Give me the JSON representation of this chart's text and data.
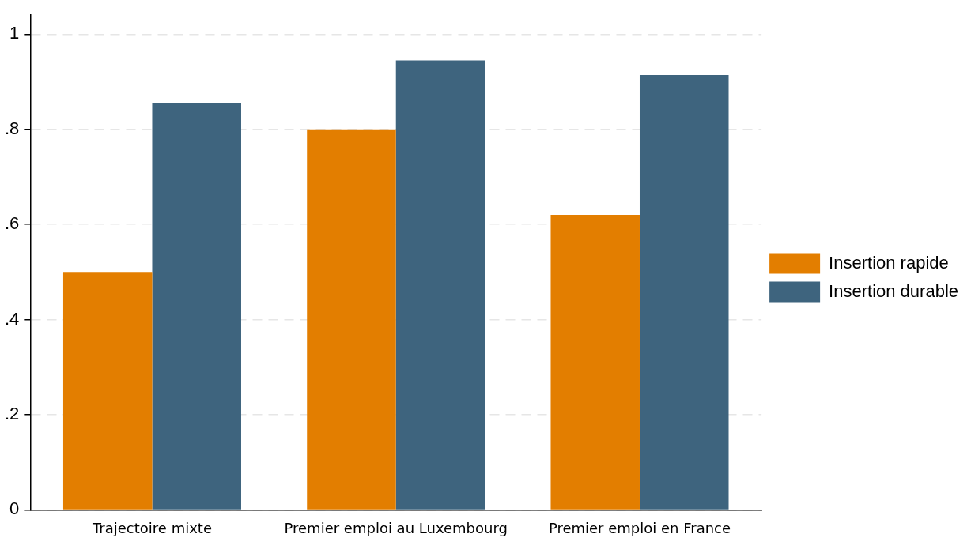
{
  "chart_data": {
    "type": "bar",
    "categories": [
      "Trajectoire mixte",
      "Premier emploi au Luxembourg",
      "Premier emploi en France"
    ],
    "series": [
      {
        "name": "Insertion rapide",
        "color": "#e37e00",
        "values": [
          0.5,
          0.8,
          0.62
        ]
      },
      {
        "name": "Insertion durable",
        "color": "#3e647e",
        "values": [
          0.855,
          0.945,
          0.914
        ]
      }
    ],
    "ylim": [
      0,
      1.04
    ],
    "yticks": [
      {
        "value": 0,
        "label": "0"
      },
      {
        "value": 0.2,
        "label": ".2"
      },
      {
        "value": 0.4,
        "label": ".4"
      },
      {
        "value": 0.6,
        "label": ".6"
      },
      {
        "value": 0.8,
        "label": ".8"
      },
      {
        "value": 1,
        "label": "1"
      }
    ],
    "grid": "y",
    "legend": "right"
  }
}
